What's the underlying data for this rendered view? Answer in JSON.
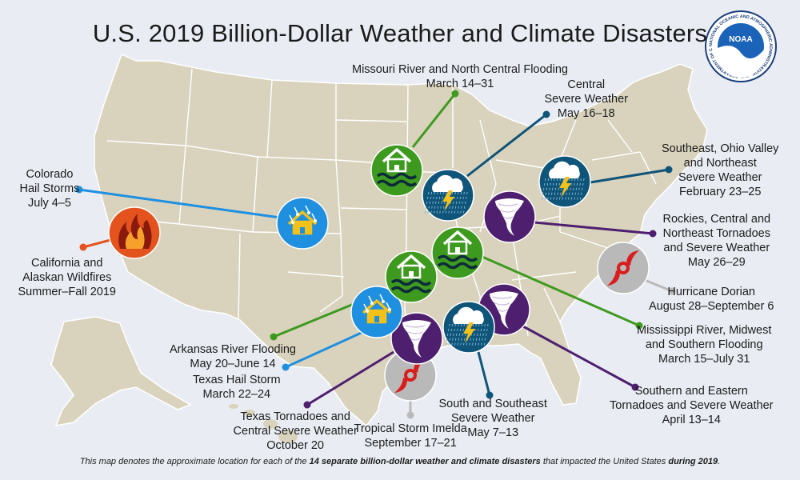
{
  "title": "U.S. 2019 Billion-Dollar Weather and Climate Disasters",
  "logo": {
    "text": "NOAA",
    "ring_text": "NATIONAL OCEANIC AND ATMOSPHERIC ADMINISTRATION · U.S. DEPARTMENT OF COMMERCE"
  },
  "colors": {
    "background": "#e9edf3",
    "land": "#d9d3bd",
    "state_border": "#ffffff",
    "flooding": "#3e9a1f",
    "severe_weather": "#0f5479",
    "tornado": "#4e1f6f",
    "hail": "#1f8fe0",
    "wildfire": "#e4531d",
    "tropical_cyclone": "#b9b9b9",
    "hurricane_icon": "#d91c1c"
  },
  "events": [
    {
      "id": "missouri",
      "icon": "flood-icon",
      "category": "flooding",
      "lines": [
        "Missouri River and North Central Flooding",
        "March 14–31"
      ]
    },
    {
      "id": "central",
      "icon": "severe-weather-icon",
      "category": "severe_weather",
      "lines": [
        "Central",
        "Severe Weather",
        "May 16–18"
      ]
    },
    {
      "id": "southeast_ohio",
      "icon": "severe-weather-icon",
      "category": "severe_weather",
      "lines": [
        "Southeast, Ohio Valley",
        "and Northeast",
        "Severe Weather",
        "February 23–25"
      ]
    },
    {
      "id": "colorado_hail",
      "icon": "hail-icon",
      "category": "hail",
      "lines": [
        "Colorado",
        "Hail Storms",
        "July 4–5"
      ]
    },
    {
      "id": "wildfires",
      "icon": "wildfire-icon",
      "category": "wildfire",
      "lines": [
        "California and",
        "Alaskan Wildfires",
        "Summer–Fall 2019"
      ]
    },
    {
      "id": "rockies_tornadoes",
      "icon": "tornado-icon",
      "category": "tornado",
      "lines": [
        "Rockies, Central and",
        "Northeast Tornadoes",
        "and Severe Weather",
        "May 26–29"
      ]
    },
    {
      "id": "dorian",
      "icon": "hurricane-icon",
      "category": "tropical_cyclone",
      "lines": [
        "Hurricane Dorian",
        "August 28–September 6"
      ]
    },
    {
      "id": "mississippi",
      "icon": "flood-icon",
      "category": "flooding",
      "lines": [
        "Mississippi River, Midwest",
        "and Southern Flooding",
        "March 15–July 31"
      ]
    },
    {
      "id": "southern_eastern",
      "icon": "tornado-icon",
      "category": "tornado",
      "lines": [
        "Southern and Eastern",
        "Tornadoes and Severe Weather",
        "April 13–14"
      ]
    },
    {
      "id": "south_southeast",
      "icon": "severe-weather-icon",
      "category": "severe_weather",
      "lines": [
        "South and Southeast",
        "Severe Weather",
        "May 7–13"
      ]
    },
    {
      "id": "imelda",
      "icon": "hurricane-icon",
      "category": "tropical_cyclone",
      "lines": [
        "Tropical Storm Imelda",
        "September 17–21"
      ]
    },
    {
      "id": "texas_tornadoes",
      "icon": "tornado-icon",
      "category": "tornado",
      "lines": [
        "Texas Tornadoes and",
        "Central Severe Weather",
        "October 20"
      ]
    },
    {
      "id": "texas_hail",
      "icon": "hail-icon",
      "category": "hail",
      "lines": [
        "Texas Hail Storm",
        "March 22–24"
      ]
    },
    {
      "id": "arkansas",
      "icon": "flood-icon",
      "category": "flooding",
      "lines": [
        "Arkansas River Flooding",
        "May 20–June 14"
      ]
    }
  ],
  "footnote": {
    "prefix": "This map denotes the approximate location for each of the ",
    "bold1": "14 separate billion-dollar weather and climate disasters",
    "middle": " that impacted the United States ",
    "bold2": "during 2019",
    "suffix": "."
  }
}
